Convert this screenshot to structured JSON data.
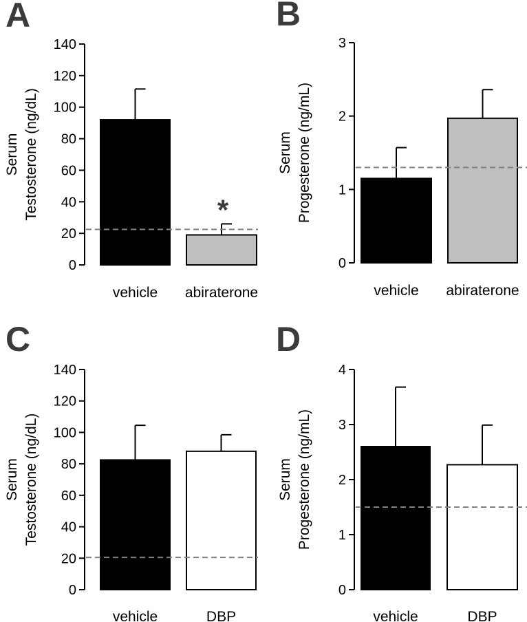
{
  "figure": {
    "colors": {
      "vehicle": "#000000",
      "abiraterone": "#bfbfbf",
      "DBP": "#ffffff",
      "threshold": "#808080",
      "letters": "#3b3b3b"
    }
  },
  "chart_data": [
    {
      "panel": "A",
      "type": "bar",
      "categories": [
        "vehicle",
        "abiraterone"
      ],
      "values": [
        92,
        19
      ],
      "errors": [
        19.5,
        7
      ],
      "bar_colors": [
        "#000000",
        "#bfbfbf"
      ],
      "ylabel_lines": [
        "Serum",
        "Testosterone (ng/dL)"
      ],
      "ylim": [
        0,
        140
      ],
      "yticks": [
        "0",
        "20",
        "40",
        "60",
        "80",
        "100",
        "120",
        "140"
      ],
      "threshold": 22.5,
      "annotations": [
        {
          "text": "*",
          "category_index": 1
        }
      ]
    },
    {
      "panel": "B",
      "type": "bar",
      "categories": [
        "vehicle",
        "abiraterone"
      ],
      "values": [
        1.15,
        1.97
      ],
      "errors": [
        0.42,
        0.39
      ],
      "bar_colors": [
        "#000000",
        "#bfbfbf"
      ],
      "ylabel_lines": [
        "Serum",
        "Progesterone (ng/mL)"
      ],
      "ylim": [
        0,
        3
      ],
      "yticks": [
        "0",
        "1",
        "2",
        "3"
      ],
      "threshold": 1.3,
      "annotations": []
    },
    {
      "panel": "C",
      "type": "bar",
      "categories": [
        "vehicle",
        "DBP"
      ],
      "values": [
        82.5,
        88
      ],
      "errors": [
        22,
        10.5
      ],
      "bar_colors": [
        "#000000",
        "#ffffff"
      ],
      "ylabel_lines": [
        "Serum",
        "Testosterone (ng/dL)"
      ],
      "ylim": [
        0,
        140
      ],
      "yticks": [
        "0",
        "20",
        "40",
        "60",
        "80",
        "100",
        "120",
        "140"
      ],
      "threshold": 20.5,
      "annotations": []
    },
    {
      "panel": "D",
      "type": "bar",
      "categories": [
        "vehicle",
        "DBP"
      ],
      "values": [
        2.6,
        2.27
      ],
      "errors": [
        1.08,
        0.72
      ],
      "bar_colors": [
        "#000000",
        "#ffffff"
      ],
      "ylabel_lines": [
        "Serum",
        "Progesterone (ng/mL)"
      ],
      "ylim": [
        0,
        4
      ],
      "yticks": [
        "0",
        "1",
        "2",
        "3",
        "4"
      ],
      "threshold": 1.5,
      "annotations": []
    }
  ]
}
